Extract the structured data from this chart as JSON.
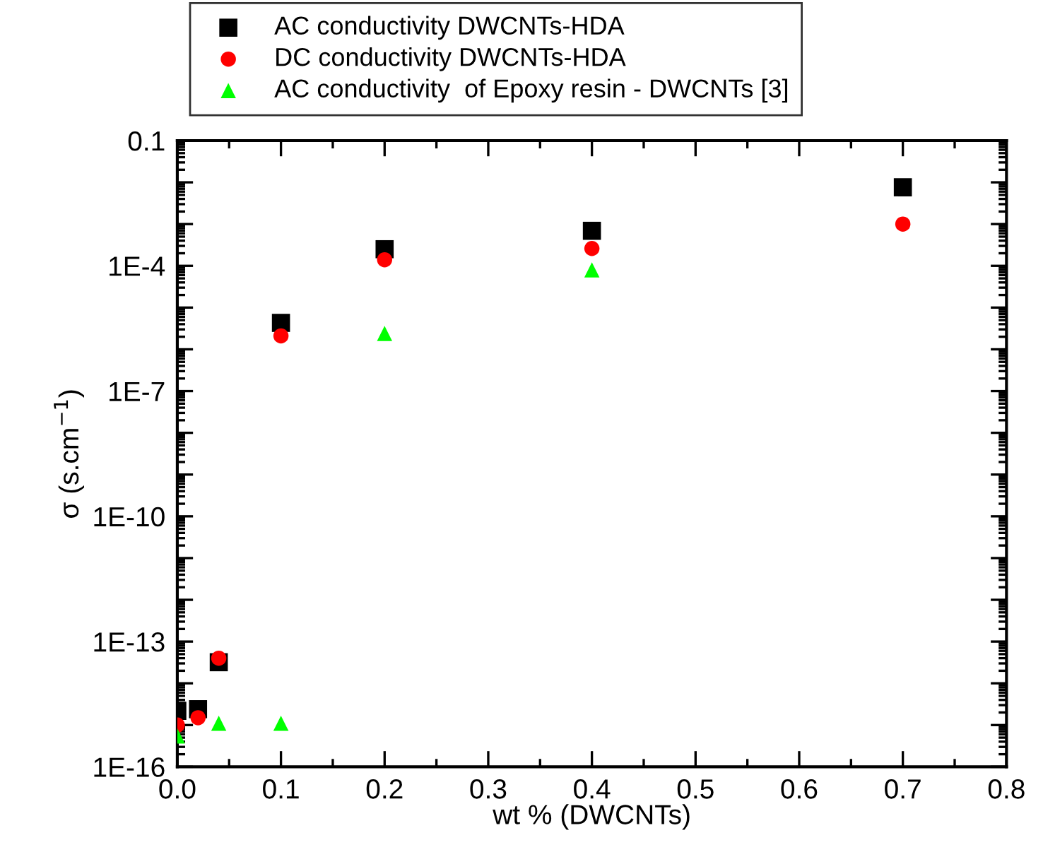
{
  "chart_data": {
    "type": "scatter",
    "xlabel": "wt % (DWCNTs)",
    "ylabel": "σ (s.cm$^{−1}$)",
    "log": "y",
    "legend": "top",
    "grid": false,
    "xlim": [
      0,
      0.8
    ],
    "xticks": [
      {
        "value": 0,
        "label": "0.0"
      },
      0.1,
      0.2,
      0.3,
      0.4,
      0.5,
      0.6,
      0.7,
      0.8
    ],
    "ylim": [
      1e-16,
      0.1
    ],
    "yticks": [
      {
        "value": 1e-16,
        "label": "1E-16"
      },
      {
        "value": 1e-15,
        "label": null
      },
      {
        "value": 1e-14,
        "label": null
      },
      {
        "value": 1e-13,
        "label": "1E-13"
      },
      {
        "value": 1e-12,
        "label": null
      },
      {
        "value": 1e-11,
        "label": null
      },
      {
        "value": 1e-10,
        "label": "1E-10"
      },
      {
        "value": 1e-09,
        "label": null
      },
      {
        "value": 1e-08,
        "label": null
      },
      {
        "value": 1e-07,
        "label": "1E-7"
      },
      {
        "value": 1e-06,
        "label": null
      },
      {
        "value": 1e-05,
        "label": null
      },
      {
        "value": 0.0001,
        "label": "1E-4"
      },
      {
        "value": 0.001,
        "label": null
      },
      {
        "value": 0.01,
        "label": null
      },
      {
        "value": 0.1,
        "label": "0.1"
      }
    ],
    "series": [
      {
        "name": "AC conductivity DWCNTs-HDA",
        "color": "#000000",
        "marker": "square",
        "x": [
          0,
          0.02,
          0.04,
          0.1,
          0.2,
          0.4,
          0.7
        ],
        "values": [
          2.2e-15,
          2.4e-15,
          3.2e-14,
          4.3e-06,
          0.00025,
          0.00069,
          0.0076
        ]
      },
      {
        "name": "DC conductivity DWCNTs-HDA",
        "color": "#ff0000",
        "marker": "circle",
        "x": [
          0,
          0.02,
          0.04,
          0.1,
          0.2,
          0.4,
          0.7
        ],
        "values": [
          1e-15,
          1.5e-15,
          4e-14,
          2.1e-06,
          0.00014,
          0.00026,
          0.001
        ]
      },
      {
        "name": "AC conductivity  of Epoxy resin - DWCNTs [3]",
        "color": "#00ff00",
        "marker": "triangle",
        "x": [
          0,
          0.04,
          0.1,
          0.2,
          0.4
        ],
        "values": [
          5.5e-16,
          1.1e-15,
          1.1e-15,
          2.4e-06,
          8e-05
        ]
      }
    ]
  }
}
